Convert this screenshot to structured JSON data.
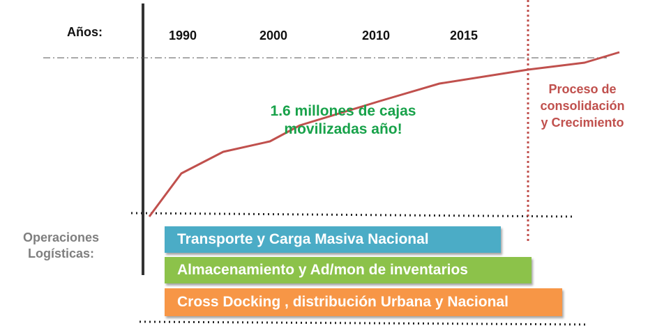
{
  "header": {
    "axis_title": "Años:",
    "years": [
      "1990",
      "2000",
      "2010",
      "2015"
    ]
  },
  "annotations": {
    "volume_line1": "1.6 millones de cajas",
    "volume_line2": "movilizadas  año!",
    "phase_line1": "Proceso de",
    "phase_line2": "consolidación",
    "phase_line3": "y Crecimiento"
  },
  "operations": {
    "title_line1": "Operaciones",
    "title_line2": "Logísticas:",
    "bars": [
      {
        "label": "Transporte  y  Carga Masiva Nacional",
        "color": "#4bacc6"
      },
      {
        "label": "Almacenamiento y Ad/mon de inventarios",
        "color": "#8cc24a"
      },
      {
        "label": "Cross Docking , distribución Urbana y Nacional",
        "color": "#f79646"
      }
    ]
  },
  "colors": {
    "growth_line": "#c0504d",
    "phase_divider": "#c0504d",
    "axis": "#333333"
  }
}
